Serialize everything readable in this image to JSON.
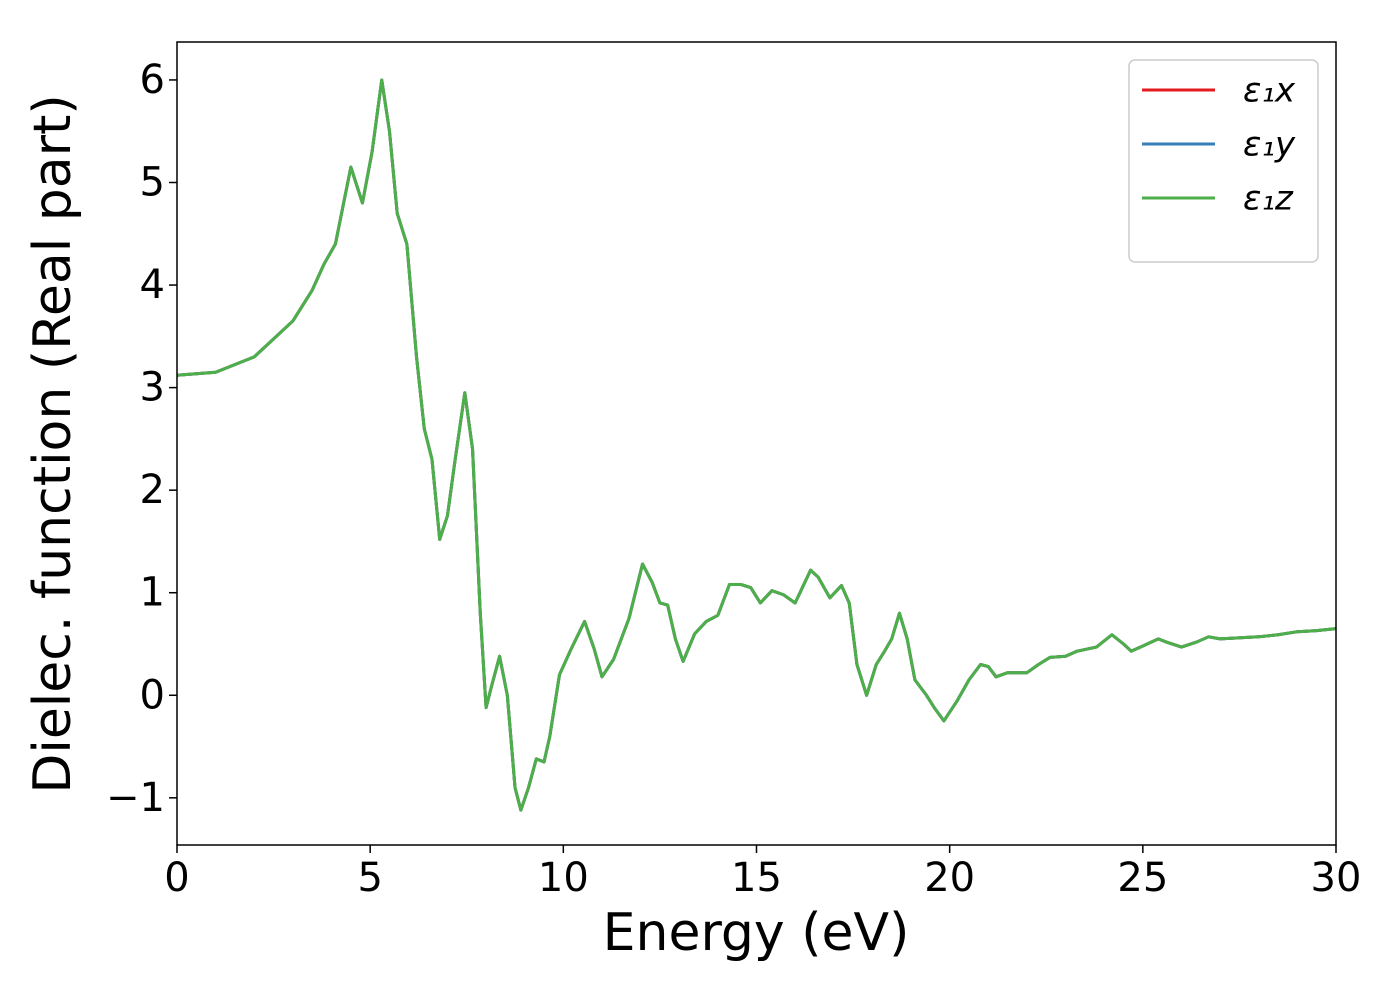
{
  "chart_data": {
    "type": "line",
    "xlabel": "Energy (eV)",
    "ylabel": "Dielec. function (Real part)",
    "x": [
      0,
      1,
      2,
      3,
      3.5,
      3.8,
      4.1,
      4.5,
      4.8,
      5.05,
      5.3,
      5.5,
      5.7,
      5.95,
      6.2,
      6.4,
      6.6,
      6.8,
      7.0,
      7.2,
      7.45,
      7.65,
      7.85,
      8.0,
      8.15,
      8.35,
      8.55,
      8.75,
      8.9,
      9.1,
      9.3,
      9.5,
      9.65,
      9.9,
      10.2,
      10.55,
      10.8,
      11.0,
      11.3,
      11.7,
      12.05,
      12.3,
      12.5,
      12.7,
      12.9,
      13.1,
      13.4,
      13.7,
      14.0,
      14.3,
      14.6,
      14.85,
      15.1,
      15.4,
      15.7,
      16.0,
      16.4,
      16.6,
      16.9,
      17.2,
      17.4,
      17.6,
      17.85,
      18.1,
      18.3,
      18.5,
      18.7,
      18.9,
      19.1,
      19.4,
      19.6,
      19.85,
      20.2,
      20.5,
      20.8,
      21.0,
      21.2,
      21.5,
      21.8,
      22.0,
      22.3,
      22.6,
      23.0,
      23.3,
      23.8,
      24.2,
      24.5,
      24.7,
      25.0,
      25.4,
      25.6,
      26.0,
      26.4,
      26.7,
      27.0,
      28.0,
      28.5,
      29.0,
      29.5,
      30
    ],
    "series": [
      {
        "name": "ε₁x",
        "color": "#e41a1c",
        "values": [
          3.12,
          3.15,
          3.3,
          3.65,
          3.95,
          4.2,
          4.4,
          5.15,
          4.8,
          5.3,
          6.0,
          5.5,
          4.7,
          4.4,
          3.3,
          2.6,
          2.3,
          1.52,
          1.75,
          2.3,
          2.95,
          2.4,
          0.8,
          -0.12,
          0.1,
          0.38,
          0.0,
          -0.9,
          -1.12,
          -0.9,
          -0.62,
          -0.65,
          -0.4,
          0.2,
          0.45,
          0.72,
          0.45,
          0.18,
          0.35,
          0.75,
          1.28,
          1.1,
          0.9,
          0.88,
          0.55,
          0.33,
          0.6,
          0.72,
          0.78,
          1.08,
          1.08,
          1.05,
          0.9,
          1.02,
          0.98,
          0.9,
          1.22,
          1.15,
          0.95,
          1.07,
          0.9,
          0.3,
          0.0,
          0.3,
          0.42,
          0.55,
          0.8,
          0.55,
          0.15,
          0.0,
          -0.12,
          -0.25,
          -0.05,
          0.15,
          0.3,
          0.28,
          0.18,
          0.22,
          0.22,
          0.22,
          0.3,
          0.37,
          0.38,
          0.43,
          0.47,
          0.59,
          0.5,
          0.43,
          0.48,
          0.55,
          0.52,
          0.47,
          0.52,
          0.57,
          0.55,
          0.57,
          0.59,
          0.62,
          0.63,
          0.65
        ]
      },
      {
        "name": "ε₁y",
        "color": "#377eb8",
        "values": [
          3.12,
          3.15,
          3.3,
          3.65,
          3.95,
          4.2,
          4.4,
          5.15,
          4.8,
          5.3,
          6.0,
          5.5,
          4.7,
          4.4,
          3.3,
          2.6,
          2.3,
          1.52,
          1.75,
          2.3,
          2.95,
          2.4,
          0.8,
          -0.12,
          0.1,
          0.38,
          0.0,
          -0.9,
          -1.12,
          -0.9,
          -0.62,
          -0.65,
          -0.4,
          0.2,
          0.45,
          0.72,
          0.45,
          0.18,
          0.35,
          0.75,
          1.28,
          1.1,
          0.9,
          0.88,
          0.55,
          0.33,
          0.6,
          0.72,
          0.78,
          1.08,
          1.08,
          1.05,
          0.9,
          1.02,
          0.98,
          0.9,
          1.22,
          1.15,
          0.95,
          1.07,
          0.9,
          0.3,
          0.0,
          0.3,
          0.42,
          0.55,
          0.8,
          0.55,
          0.15,
          0.0,
          -0.12,
          -0.25,
          -0.05,
          0.15,
          0.3,
          0.28,
          0.18,
          0.22,
          0.22,
          0.22,
          0.3,
          0.37,
          0.38,
          0.43,
          0.47,
          0.59,
          0.5,
          0.43,
          0.48,
          0.55,
          0.52,
          0.47,
          0.52,
          0.57,
          0.55,
          0.57,
          0.59,
          0.62,
          0.63,
          0.65
        ]
      },
      {
        "name": "ε₁z",
        "color": "#4daf4a",
        "values": [
          3.12,
          3.15,
          3.3,
          3.65,
          3.95,
          4.2,
          4.4,
          5.15,
          4.8,
          5.3,
          6.0,
          5.5,
          4.7,
          4.4,
          3.3,
          2.6,
          2.3,
          1.52,
          1.75,
          2.3,
          2.95,
          2.4,
          0.8,
          -0.12,
          0.1,
          0.38,
          0.0,
          -0.9,
          -1.12,
          -0.9,
          -0.62,
          -0.65,
          -0.4,
          0.2,
          0.45,
          0.72,
          0.45,
          0.18,
          0.35,
          0.75,
          1.28,
          1.1,
          0.9,
          0.88,
          0.55,
          0.33,
          0.6,
          0.72,
          0.78,
          1.08,
          1.08,
          1.05,
          0.9,
          1.02,
          0.98,
          0.9,
          1.22,
          1.15,
          0.95,
          1.07,
          0.9,
          0.3,
          0.0,
          0.3,
          0.42,
          0.55,
          0.8,
          0.55,
          0.15,
          0.0,
          -0.12,
          -0.25,
          -0.05,
          0.15,
          0.3,
          0.28,
          0.18,
          0.22,
          0.22,
          0.22,
          0.3,
          0.37,
          0.38,
          0.43,
          0.47,
          0.59,
          0.5,
          0.43,
          0.48,
          0.55,
          0.52,
          0.47,
          0.52,
          0.57,
          0.55,
          0.57,
          0.59,
          0.62,
          0.63,
          0.65
        ]
      }
    ],
    "xlim": [
      0,
      30
    ],
    "xticks": [
      0,
      5,
      10,
      15,
      20,
      25,
      30
    ],
    "ylim": [
      -1.46,
      6.37
    ],
    "yticks": [
      {
        "value": -1,
        "label": "−1"
      },
      0,
      1,
      2,
      3,
      4,
      5,
      6
    ],
    "grid": false,
    "legend": "upper right"
  }
}
